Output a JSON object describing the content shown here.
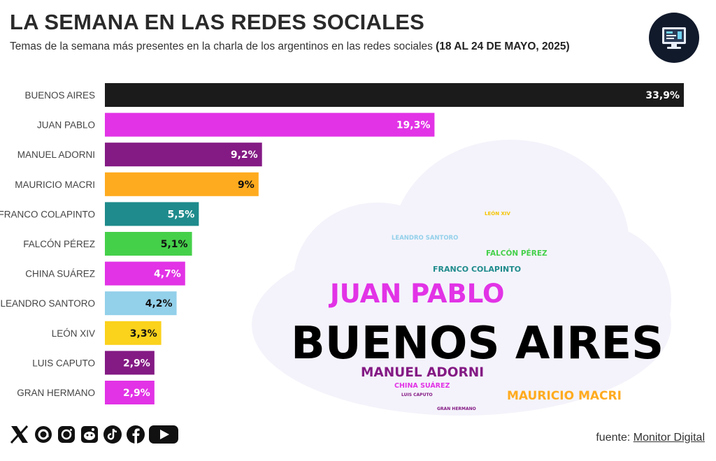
{
  "header": {
    "title": "LA SEMANA EN LAS REDES SOCIALES",
    "subtitle": "Temas de la semana más presentes en la charla de los argentinos en las redes sociales ",
    "subtitle_dates": "(18 AL 24 DE MAYO, 2025)"
  },
  "logo": {
    "icon": "computer-screen-icon"
  },
  "chart_data": {
    "type": "bar",
    "orientation": "horizontal",
    "title": "LA SEMANA EN LAS REDES SOCIALES",
    "xlabel": "",
    "ylabel": "",
    "unit": "%",
    "xlim": [
      0,
      33.9
    ],
    "categories": [
      "BUENOS AIRES",
      "JUAN PABLO",
      "MANUEL ADORNI",
      "MAURICIO MACRI",
      "FRANCO COLAPINTO",
      "FALCÓN PÉREZ",
      "CHINA SUÁREZ",
      "LEANDRO SANTORO",
      "LEÓN XIV",
      "LUIS CAPUTO",
      "GRAN HERMANO"
    ],
    "values": [
      33.9,
      19.3,
      9.2,
      9.0,
      5.5,
      5.1,
      4.7,
      4.2,
      3.3,
      2.9,
      2.9
    ],
    "value_labels": [
      "33,9%",
      "19,3%",
      "9,2%",
      "9%",
      "5,5%",
      "5,1%",
      "4,7%",
      "4,2%",
      "3,3%",
      "2,9%",
      "2,9%"
    ],
    "colors": [
      "#1b1b1b",
      "#e233e6",
      "#841a84",
      "#ffab1f",
      "#1f8b8c",
      "#45d04a",
      "#e233e6",
      "#93d0ea",
      "#fbd21c",
      "#841a84",
      "#e233e6"
    ],
    "label_colors": [
      "#ffffff",
      "#ffffff",
      "#ffffff",
      "#111111",
      "#ffffff",
      "#111111",
      "#ffffff",
      "#111111",
      "#111111",
      "#ffffff",
      "#ffffff"
    ],
    "grid": false,
    "legend": "none"
  },
  "word_cloud": {
    "words": [
      {
        "text": "LEÓN XIV",
        "color": "#f5c400",
        "weight": 3.3
      },
      {
        "text": "LEANDRO SANTORO",
        "color": "#93d0ea",
        "weight": 4.2
      },
      {
        "text": "FALCÓN PÉREZ",
        "color": "#45d04a",
        "weight": 5.1
      },
      {
        "text": "FRANCO COLAPINTO",
        "color": "#1f8b8c",
        "weight": 5.5
      },
      {
        "text": "JUAN PABLO",
        "color": "#e233e6",
        "weight": 19.3
      },
      {
        "text": "BUENOS AIRES",
        "color": "#000000",
        "weight": 33.9
      },
      {
        "text": "MANUEL ADORNI",
        "color": "#841a84",
        "weight": 9.2
      },
      {
        "text": "CHINA SUÁREZ",
        "color": "#e233e6",
        "weight": 4.7
      },
      {
        "text": "LUIS CAPUTO",
        "color": "#841a84",
        "weight": 2.9
      },
      {
        "text": "MAURICIO MACRI",
        "color": "#ffab1f",
        "weight": 9.0
      },
      {
        "text": "GRAN HERMANO",
        "color": "#841a84",
        "weight": 2.9
      }
    ]
  },
  "footer": {
    "social_icons": [
      "x-icon",
      "threads-icon",
      "instagram-icon",
      "reddit-icon",
      "tiktok-icon",
      "facebook-icon",
      "youtube-icon"
    ],
    "source_prefix": "fuente: ",
    "source_link": "Monitor Digital"
  }
}
